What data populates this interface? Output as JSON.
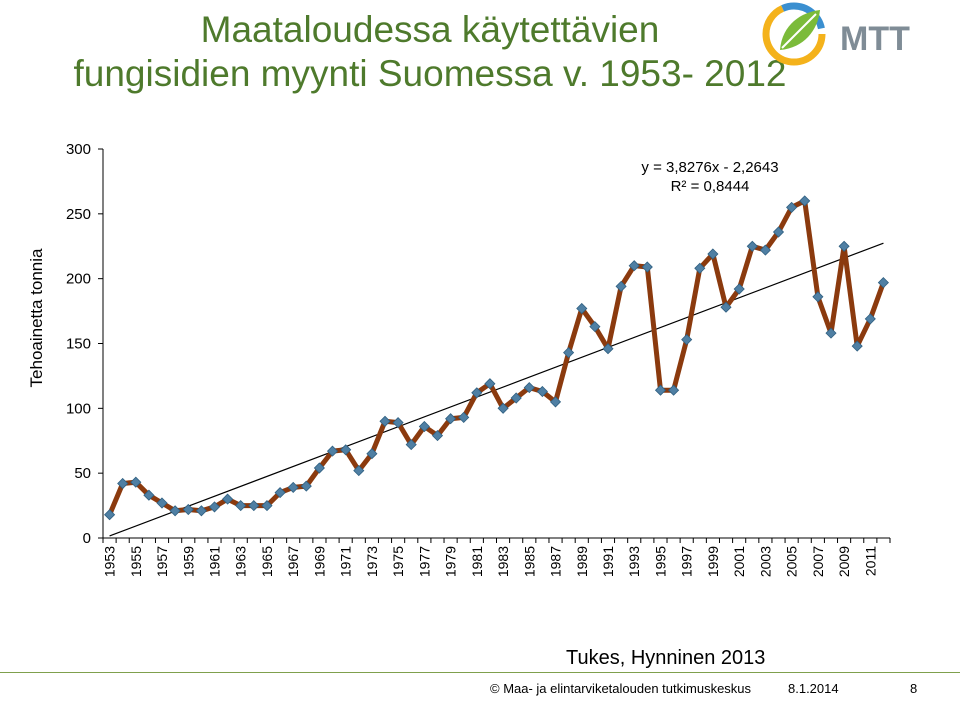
{
  "slide": {
    "title_line1": "Maataloudessa käytettävien",
    "title_line2": "fungisidien myynti Suomessa v. 1953- 2012",
    "source": "Tukes, Hynninen 2013",
    "logo_text": "MTT",
    "footer": {
      "copyright": "© Maa- ja elintarviketalouden tutkimuskeskus",
      "date": "8.1.2014",
      "page": "8"
    }
  },
  "colors": {
    "title": "#4e7a2c",
    "series_line": "#8b3a0e",
    "marker": "#4f7fa3",
    "trendline": "#000000",
    "footer_rule": "#7fa04d"
  },
  "chart_data": {
    "type": "line",
    "ylabel": "Tehoainetta tonnia",
    "xlabel": "",
    "ylim": [
      0,
      300
    ],
    "yticks": [
      0,
      50,
      100,
      150,
      200,
      250,
      300
    ],
    "x_tick_labels": [
      "1953",
      "1955",
      "1957",
      "1959",
      "1961",
      "1963",
      "1965",
      "1967",
      "1969",
      "1971",
      "1973",
      "1975",
      "1977",
      "1979",
      "1981",
      "1983",
      "1985",
      "1987",
      "1989",
      "1991",
      "1993",
      "1995",
      "1997",
      "1999",
      "2001",
      "2003",
      "2005",
      "2007",
      "2009",
      "2011"
    ],
    "x": [
      1953,
      1954,
      1955,
      1956,
      1957,
      1958,
      1959,
      1960,
      1961,
      1962,
      1963,
      1964,
      1965,
      1966,
      1967,
      1968,
      1969,
      1970,
      1971,
      1972,
      1973,
      1974,
      1975,
      1976,
      1977,
      1978,
      1979,
      1980,
      1981,
      1982,
      1983,
      1984,
      1985,
      1986,
      1987,
      1988,
      1989,
      1990,
      1991,
      1992,
      1993,
      1994,
      1995,
      1996,
      1997,
      1998,
      1999,
      2000,
      2001,
      2002,
      2003,
      2004,
      2005,
      2006,
      2007,
      2008,
      2009,
      2010,
      2011,
      2012
    ],
    "series": [
      {
        "values": [
          18,
          42,
          43,
          33,
          27,
          21,
          22,
          21,
          24,
          30,
          25,
          25,
          25,
          35,
          39,
          40,
          54,
          67,
          68,
          52,
          65,
          90,
          89,
          72,
          86,
          79,
          92,
          93,
          112,
          119,
          100,
          108,
          116,
          113,
          105,
          143,
          177,
          163,
          146,
          194,
          210,
          209,
          114,
          114,
          153,
          208,
          219,
          178,
          192,
          225,
          222,
          236,
          255,
          260,
          186,
          158,
          225,
          148,
          169,
          197
        ]
      }
    ],
    "trendline": {
      "equation": "y = 3,8276x - 2,2643",
      "r_squared": "R² = 0,8444",
      "slope": 3.8276,
      "intercept": -2.2643
    },
    "grid": false,
    "legend": "none"
  }
}
